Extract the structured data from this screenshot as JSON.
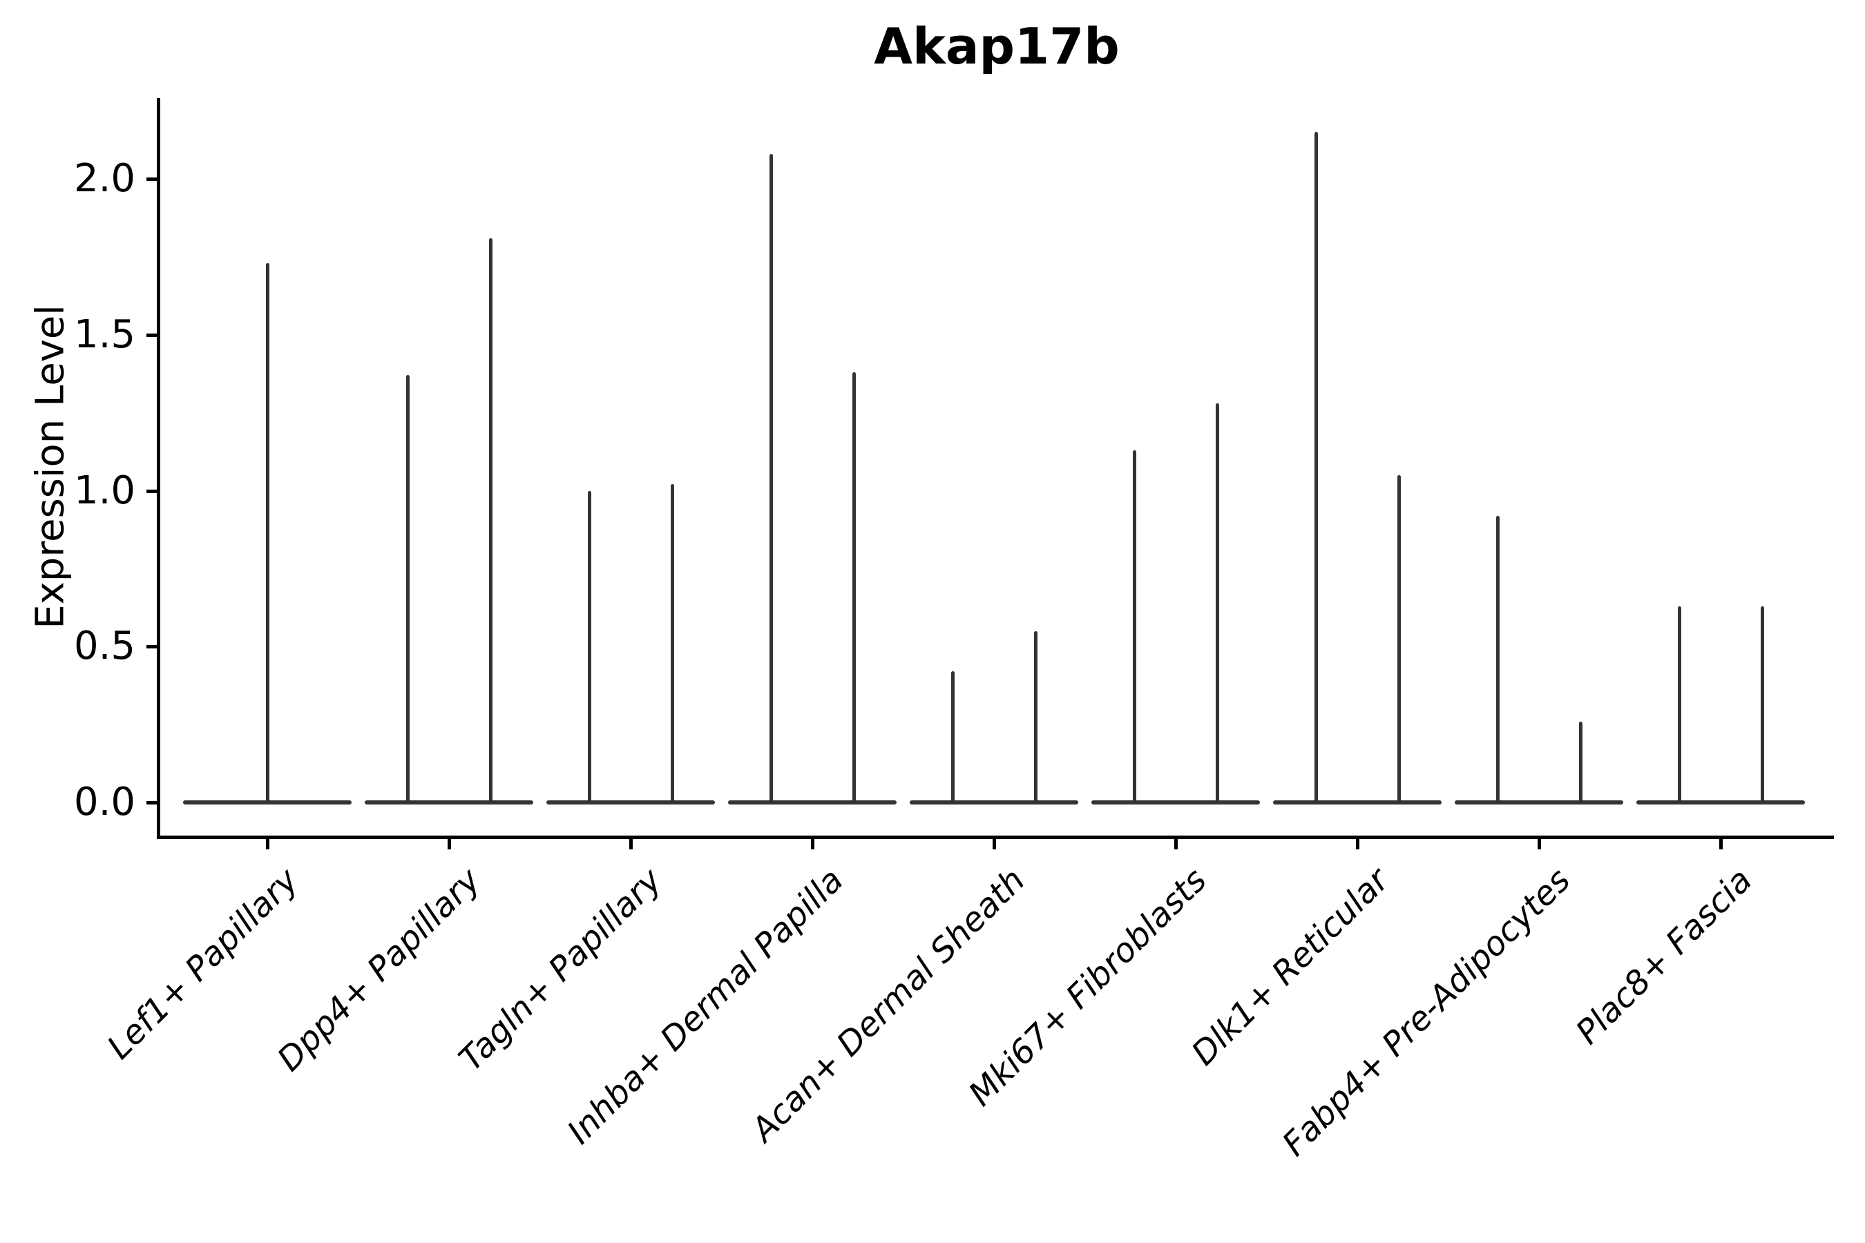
{
  "title": "Akap17b",
  "chart_data": {
    "type": "violin",
    "title": "Akap17b",
    "xlabel": "",
    "ylabel": "Expression Level",
    "categories": [
      "Lef1+ Papillary",
      "Dpp4+ Papillary",
      "Tagln+ Papillary",
      "Inhba+ Dermal Papilla",
      "Acan+ Dermal Sheath",
      "Mki67+ Fibroblasts",
      "Dlk1+ Reticular",
      "Fabp4+ Pre-Adipocytes",
      "Plac8+ Fascia"
    ],
    "series": [
      {
        "category": "Lef1+ Papillary",
        "violin_peaks": [
          1.73
        ]
      },
      {
        "category": "Dpp4+ Papillary",
        "violin_peaks": [
          1.37,
          1.81
        ]
      },
      {
        "category": "Tagln+ Papillary",
        "violin_peaks": [
          1.0,
          1.02
        ]
      },
      {
        "category": "Inhba+ Dermal Papilla",
        "violin_peaks": [
          2.08,
          1.38
        ]
      },
      {
        "category": "Acan+ Dermal Sheath",
        "violin_peaks": [
          0.42,
          0.55
        ]
      },
      {
        "category": "Mki67+ Fibroblasts",
        "violin_peaks": [
          1.13,
          1.28
        ]
      },
      {
        "category": "Dlk1+ Reticular",
        "violin_peaks": [
          2.15,
          1.05
        ]
      },
      {
        "category": "Fabp4+ Pre-Adipocytes",
        "violin_peaks": [
          0.92,
          0.26
        ]
      },
      {
        "category": "Plac8+ Fascia",
        "violin_peaks": [
          0.63,
          0.63
        ]
      }
    ],
    "ytick_values": [
      0.0,
      0.5,
      1.0,
      1.5,
      2.0
    ],
    "ytick_labels": [
      "0.0",
      "0.5",
      "1.0",
      "1.5",
      "2.0"
    ],
    "ylim": [
      -0.11,
      2.26
    ],
    "grid": false,
    "legend": "none",
    "violins_at_zero_note": "each violin is a flat baseline at 0 with a thin spike up to its max expression value",
    "colors": {
      "violin": "#333333",
      "axis": "#000000",
      "text": "#000000",
      "background": "#ffffff"
    }
  }
}
